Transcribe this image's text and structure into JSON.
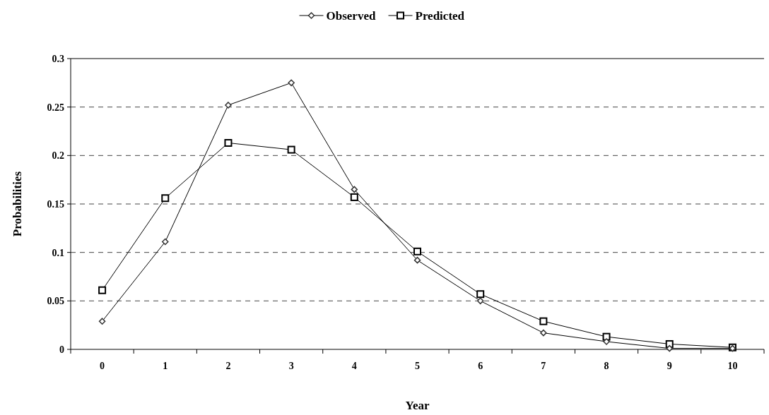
{
  "chart_data": {
    "type": "line",
    "xlabel": "Year",
    "ylabel": "Probabilities",
    "categories": [
      "0",
      "1",
      "2",
      "3",
      "4",
      "5",
      "6",
      "7",
      "8",
      "9",
      "10"
    ],
    "series": [
      {
        "name": "Observed",
        "color": "#000000",
        "marker": "diamond",
        "values": [
          0.029,
          0.111,
          0.252,
          0.275,
          0.165,
          0.092,
          0.05,
          0.017,
          0.008,
          0.001,
          0.001
        ]
      },
      {
        "name": "Predicted",
        "color": "#000000",
        "marker": "square",
        "values": [
          0.061,
          0.156,
          0.213,
          0.206,
          0.157,
          0.101,
          0.057,
          0.029,
          0.013,
          0.0055,
          0.002
        ]
      }
    ],
    "ylim": [
      0,
      0.3
    ],
    "yticks": [
      0,
      0.05,
      0.1,
      0.15,
      0.2,
      0.25,
      0.3
    ],
    "grid": "y",
    "legend": "top",
    "line_style": "solid"
  }
}
